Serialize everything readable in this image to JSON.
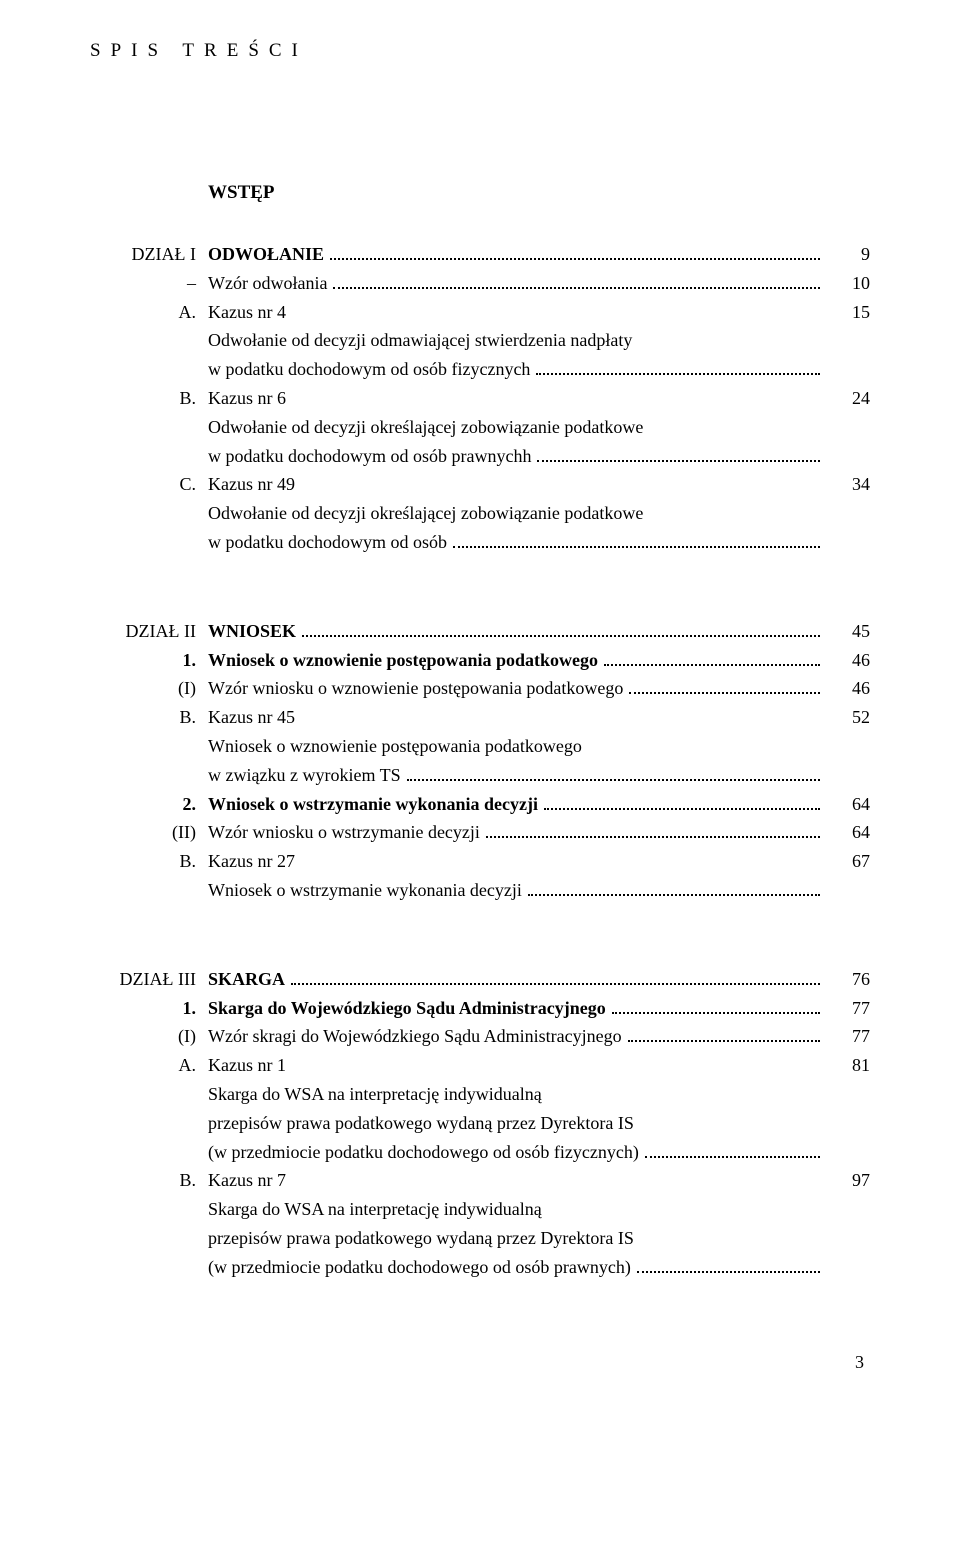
{
  "header": "SPIS TREŚCI",
  "intro": "WSTĘP",
  "footer_page": "3",
  "sections": [
    {
      "rows": [
        {
          "label": "DZIAŁ I",
          "text": "ODWOŁANIE",
          "page": "9",
          "bold": true,
          "label_plain": true
        },
        {
          "label": "–",
          "text": "Wzór odwołania",
          "page": "10"
        },
        {
          "label": "A.",
          "pre": [
            "Kazus nr 4",
            "Odwołanie od decyzji odmawiającej stwierdzenia nadpłaty"
          ],
          "text": "w podatku dochodowym od osób fizycznych",
          "page": "15"
        },
        {
          "label": "B.",
          "pre": [
            "Kazus nr 6",
            "Odwołanie od decyzji określającej zobowiązanie podatkowe"
          ],
          "text": "w podatku dochodowym od osób prawnychh",
          "page": "24"
        },
        {
          "label": "C.",
          "pre": [
            "Kazus nr 49",
            "Odwołanie od decyzji określającej zobowiązanie podatkowe"
          ],
          "text": "w podatku dochodowym od osób",
          "page": "34"
        }
      ]
    },
    {
      "rows": [
        {
          "label": "DZIAŁ II",
          "text": "WNIOSEK",
          "page": "45",
          "bold": true,
          "label_plain": true
        },
        {
          "label": "1.",
          "text": "Wniosek o wznowienie postępowania podatkowego",
          "page": "46",
          "bold": true
        },
        {
          "label": "(I)",
          "text": "Wzór wniosku o wznowienie postępowania podatkowego",
          "page": "46"
        },
        {
          "label": "B.",
          "pre": [
            "Kazus nr 45",
            "Wniosek o wznowienie postępowania podatkowego"
          ],
          "text": "w związku z wyrokiem TS",
          "page": "52"
        },
        {
          "label": "2.",
          "text": "Wniosek o wstrzymanie wykonania decyzji",
          "page": "64",
          "bold": true
        },
        {
          "label": "(II)",
          "text": "Wzór wniosku o wstrzymanie decyzji",
          "page": "64"
        },
        {
          "label": "B.",
          "pre": [
            "Kazus nr 27"
          ],
          "text": "Wniosek o wstrzymanie wykonania decyzji",
          "page": "67"
        }
      ]
    },
    {
      "rows": [
        {
          "label": "DZIAŁ III",
          "text": "SKARGA",
          "page": "76",
          "bold": true,
          "label_plain": true
        },
        {
          "label": "1.",
          "text": "Skarga do Wojewódzkiego Sądu Administracyjnego",
          "page": "77",
          "bold": true
        },
        {
          "label": "(I)",
          "text": "Wzór skragi do Wojewódzkiego Sądu Administracyjnego",
          "page": "77"
        },
        {
          "label": "A.",
          "pre": [
            "Kazus nr 1",
            "Skarga do WSA na interpretację indywidualną",
            "przepisów prawa podatkowego wydaną przez Dyrektora IS"
          ],
          "text": "(w przedmiocie podatku dochodowego od osób fizycznych)",
          "page": "81"
        },
        {
          "label": "B.",
          "pre": [
            "Kazus nr 7",
            "Skarga do WSA na interpretację indywidualną",
            "przepisów prawa podatkowego wydaną przez Dyrektora IS"
          ],
          "text": "(w przedmiocie podatku dochodowego od osób prawnych)",
          "page": "97"
        }
      ]
    }
  ]
}
